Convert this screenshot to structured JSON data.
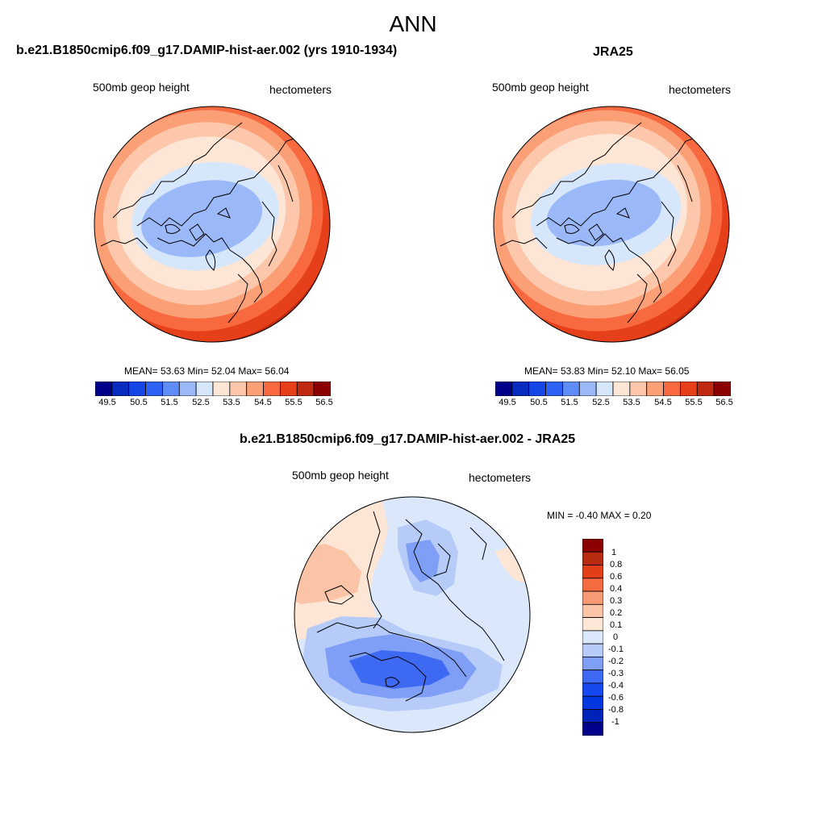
{
  "figure_title": "ANN",
  "palette": {
    "full": [
      "#00008b",
      "#0a2bc0",
      "#1746e6",
      "#2c63f4",
      "#5f8cf7",
      "#9bb8f9",
      "#d6e6fb",
      "#fde6d6",
      "#fcc7aa",
      "#fb9f77",
      "#f8693f",
      "#e5401a",
      "#bf2a10",
      "#8b0000"
    ],
    "diff": [
      "#00008b",
      "#0022b8",
      "#0036e0",
      "#1648f0",
      "#3e69f2",
      "#7f9ff6",
      "#b7cbf9",
      "#dbe8fb",
      "#fde6d6",
      "#fbc4a6",
      "#f79a74",
      "#f56a41",
      "#e23e17",
      "#b82b10",
      "#8b0000"
    ]
  },
  "panel_model": {
    "title": "b.e21.B1850cmip6.f09_g17.DAMIP-hist-aer.002 (yrs 1910-1934)",
    "variable": "500mb geop height",
    "units": "hectometers",
    "stats": "MEAN=  53.63  Min=  52.04  Max=  56.04",
    "colorbar_labels": [
      "49.5",
      "50.5",
      "51.5",
      "52.5",
      "53.5",
      "54.5",
      "55.5",
      "56.5"
    ]
  },
  "panel_obs": {
    "title": "JRA25",
    "variable": "500mb geop height",
    "units": "hectometers",
    "stats": "MEAN=  53.83  Min=  52.10  Max=  56.05",
    "colorbar_labels": [
      "49.5",
      "50.5",
      "51.5",
      "52.5",
      "53.5",
      "54.5",
      "55.5",
      "56.5"
    ]
  },
  "panel_diff": {
    "title": "b.e21.B1850cmip6.f09_g17.DAMIP-hist-aer.002 - JRA25",
    "variable": "500mb geop height",
    "units": "hectometers",
    "stats": "MIN =  -0.40 MAX =   0.20",
    "colorbar_labels": [
      "1",
      "0.8",
      "0.6",
      "0.4",
      "0.3",
      "0.2",
      "0.1",
      "0",
      "-0.1",
      "-0.2",
      "-0.3",
      "-0.4",
      "-0.6",
      "-0.8",
      "-1"
    ]
  }
}
